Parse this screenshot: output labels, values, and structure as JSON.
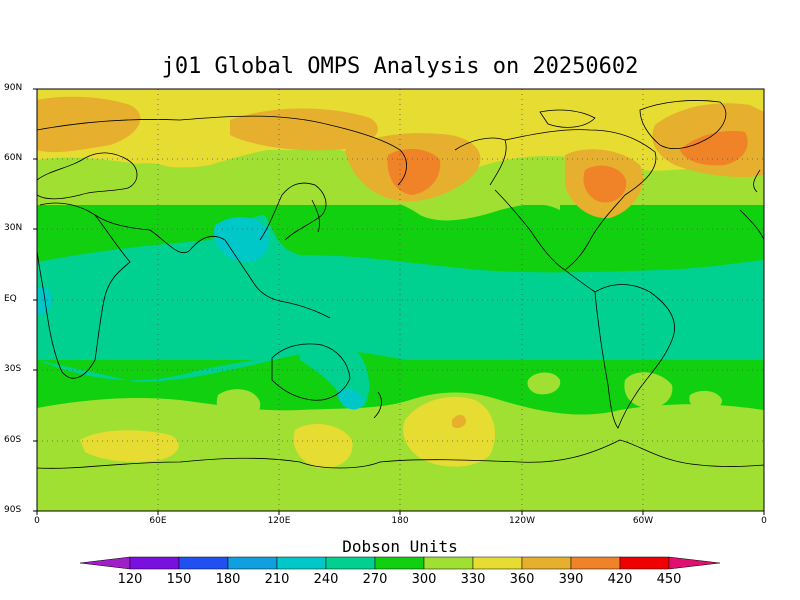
{
  "title": "j01 Global OMPS Analysis on 20250602",
  "lat_labels": [
    "90N",
    "60N",
    "30N",
    "EQ",
    "30S",
    "60S",
    "90S"
  ],
  "lon_labels": [
    "0",
    "60E",
    "120E",
    "180",
    "120W",
    "60W",
    "0"
  ],
  "colorbar": {
    "title": "Dobson Units",
    "levels": [
      "120",
      "150",
      "180",
      "210",
      "240",
      "270",
      "300",
      "330",
      "360",
      "390",
      "420",
      "450"
    ],
    "colors": [
      "#a020c8",
      "#7a10e0",
      "#2050f0",
      "#10a0e0",
      "#00c8c8",
      "#00d090",
      "#10d010",
      "#a0e032",
      "#e6dc32",
      "#e6af2d",
      "#f08228",
      "#f00000",
      "#e01070"
    ]
  },
  "chart_data": {
    "type": "heatmap",
    "title": "j01 Global OMPS Analysis on 20250602",
    "xlabel": "",
    "ylabel": "",
    "x_ticks": [
      "0",
      "60E",
      "120E",
      "180",
      "120W",
      "60W",
      "0"
    ],
    "y_ticks": [
      "90N",
      "60N",
      "30N",
      "EQ",
      "30S",
      "60S",
      "90S"
    ],
    "colorbar_label": "Dobson Units",
    "colorbar_levels": [
      120,
      150,
      180,
      210,
      240,
      270,
      300,
      330,
      360,
      390,
      420,
      450
    ],
    "grid": true
  }
}
